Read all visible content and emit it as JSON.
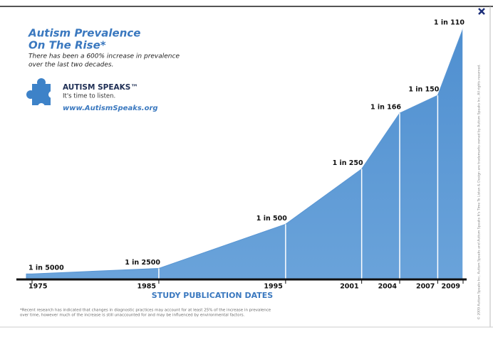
{
  "chart_data": {
    "type": "area",
    "title": [
      "Autism Prevalence",
      "On The Rise*"
    ],
    "subtitle": [
      "There has been a 600% increase in prevalence",
      "over the last two decades."
    ],
    "brand": "AUTISM SPEAKS™",
    "tagline": "It's time to listen.",
    "url": "www.AutismSpeaks.org",
    "x_label": "STUDY PUBLICATION DATES",
    "x": [
      1975,
      1985,
      1995,
      2001,
      2004,
      2007,
      2009
    ],
    "values": [
      5000,
      2500,
      500,
      250,
      166,
      150,
      110
    ],
    "value_labels": [
      "1 in 5000",
      "1 in 2500",
      "1 in 500",
      "1 in 250",
      "1 in 166",
      "1 in 150",
      "1 in 110"
    ],
    "xlim": [
      1975,
      2009
    ],
    "xticks": [
      1975,
      1985,
      1995,
      2001,
      2004,
      2007,
      2009
    ],
    "color": "#5a96d3",
    "footnote": [
      "*Recent research has indicated that changes in diagnostic practices may account for at least 25% of the increase in prevalence",
      "over time, however much of the increase is still unaccounted for and may be influenced by environmental factors."
    ],
    "side_note": "© 2009 Autism Speaks Inc. Autism Speaks and Autism Speaks It's Time To Listen & Design are trademarks owned by Autism Speaks Inc. All rights reserved."
  }
}
